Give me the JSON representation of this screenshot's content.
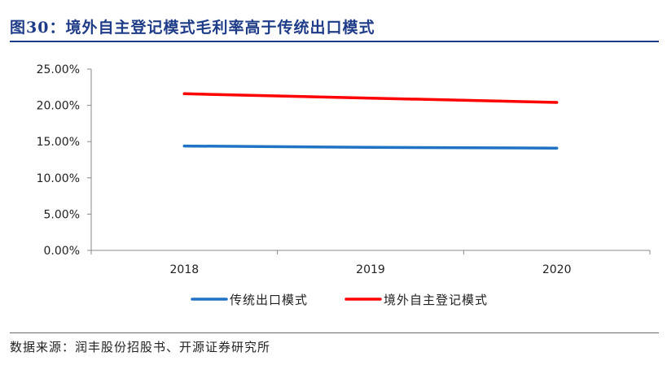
{
  "figure": {
    "title": "图30：境外自主登记模式毛利率高于传统出口模式",
    "source": "数据来源：润丰股份招股书、开源证券研究所"
  },
  "chart_data": {
    "type": "line",
    "title": "",
    "xlabel": "",
    "ylabel": "",
    "categories": [
      "2018",
      "2019",
      "2020"
    ],
    "ylim": [
      0,
      25
    ],
    "yticks": [
      "0.00%",
      "5.00%",
      "10.00%",
      "15.00%",
      "20.00%",
      "25.00%"
    ],
    "grid": false,
    "legend_position": "bottom",
    "series": [
      {
        "name": "传统出口模式",
        "values": [
          14.4,
          14.2,
          14.1
        ],
        "color": "#1f72c4"
      },
      {
        "name": "境外自主登记模式",
        "values": [
          21.6,
          21.0,
          20.4
        ],
        "color": "#ff0000"
      }
    ]
  }
}
